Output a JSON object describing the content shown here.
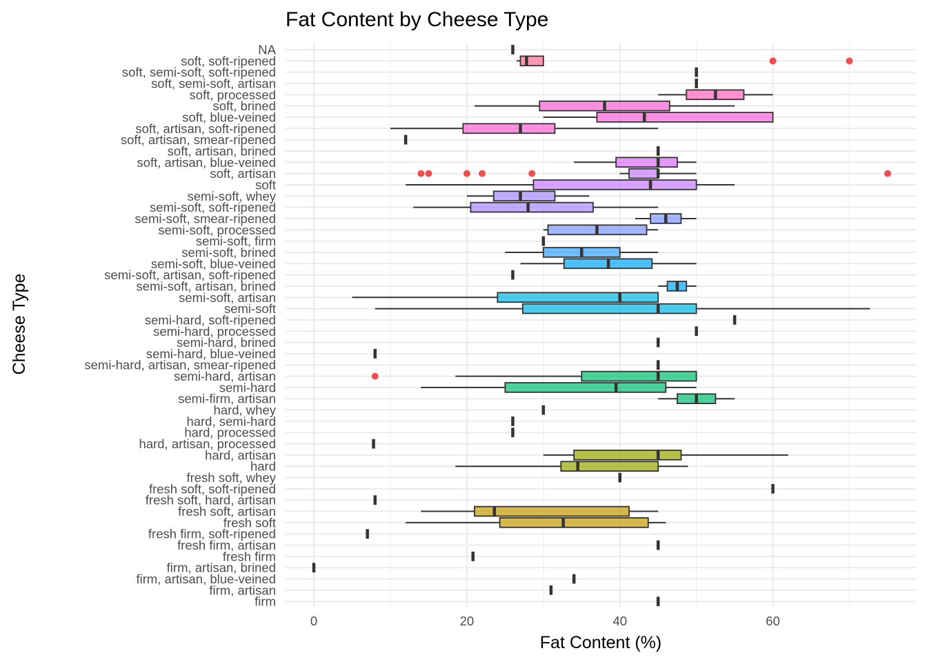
{
  "chart_data": {
    "type": "boxplot",
    "orientation": "horizontal",
    "title": "Fat Content by Cheese Type",
    "xlabel": "Fat Content (%)",
    "ylabel": "Cheese Type",
    "xlim": [
      -3.7,
      78.7
    ],
    "xticks": [
      0,
      20,
      40,
      60
    ],
    "grid": true,
    "legend": "none",
    "outlier_color": "#f03c3c",
    "categories": [
      "firm",
      "firm, artisan",
      "firm, artisan, blue-veined",
      "firm, artisan, brined",
      "fresh firm",
      "fresh firm, artisan",
      "fresh firm, soft-ripened",
      "fresh soft",
      "fresh soft, artisan",
      "fresh soft, hard, artisan",
      "fresh soft, soft-ripened",
      "fresh soft, whey",
      "hard",
      "hard, artisan",
      "hard, artisan, processed",
      "hard, processed",
      "hard, semi-hard",
      "hard, whey",
      "semi-firm, artisan",
      "semi-hard",
      "semi-hard, artisan",
      "semi-hard, artisan, smear-ripened",
      "semi-hard, blue-veined",
      "semi-hard, brined",
      "semi-hard, processed",
      "semi-hard, soft-ripened",
      "semi-soft",
      "semi-soft, artisan",
      "semi-soft, artisan, brined",
      "semi-soft, artisan, soft-ripened",
      "semi-soft, blue-veined",
      "semi-soft, brined",
      "semi-soft, firm",
      "semi-soft, processed",
      "semi-soft, smear-ripened",
      "semi-soft, soft-ripened",
      "semi-soft, whey",
      "soft",
      "soft, artisan",
      "soft, artisan, blue-veined",
      "soft, artisan, brined",
      "soft, artisan, smear-ripened",
      "soft, artisan, soft-ripened",
      "soft, blue-veined",
      "soft, brined",
      "soft, processed",
      "soft, semi-soft, artisan",
      "soft, semi-soft, soft-ripened",
      "soft, soft-ripened",
      "NA"
    ],
    "boxes": [
      {
        "category": "firm",
        "min": 45,
        "q1": 45,
        "median": 45,
        "q3": 45,
        "max": 45,
        "outliers": [],
        "color": "#c49a00"
      },
      {
        "category": "firm, artisan",
        "min": 31,
        "q1": 31,
        "median": 31,
        "q3": 31,
        "max": 31,
        "outliers": [],
        "color": "#c49a00"
      },
      {
        "category": "firm, artisan, blue-veined",
        "min": 34,
        "q1": 34,
        "median": 34,
        "q3": 34,
        "max": 34,
        "outliers": [],
        "color": "#c49a00"
      },
      {
        "category": "firm, artisan, brined",
        "min": 0,
        "q1": 0,
        "median": 0,
        "q3": 0,
        "max": 0,
        "outliers": [],
        "color": "#c49a00"
      },
      {
        "category": "fresh firm",
        "min": 20.8,
        "q1": 20.8,
        "median": 20.8,
        "q3": 20.8,
        "max": 20.8,
        "outliers": [],
        "color": "#c49a00"
      },
      {
        "category": "fresh firm, artisan",
        "min": 45,
        "q1": 45,
        "median": 45,
        "q3": 45,
        "max": 45,
        "outliers": [],
        "color": "#c49a00"
      },
      {
        "category": "fresh firm, soft-ripened",
        "min": 7,
        "q1": 7,
        "median": 7,
        "q3": 7,
        "max": 7,
        "outliers": [],
        "color": "#c49a00"
      },
      {
        "category": "fresh soft",
        "min": 12,
        "q1": 24.3,
        "median": 32.6,
        "q3": 43.7,
        "max": 46,
        "outliers": [],
        "color": "#c49a00"
      },
      {
        "category": "fresh soft, artisan",
        "min": 14,
        "q1": 21,
        "median": 23.6,
        "q3": 41.2,
        "max": 45,
        "outliers": [],
        "color": "#c49a00"
      },
      {
        "category": "fresh soft, hard, artisan",
        "min": 8,
        "q1": 8,
        "median": 8,
        "q3": 8,
        "max": 8,
        "outliers": [],
        "color": "#c49a00"
      },
      {
        "category": "fresh soft, soft-ripened",
        "min": 60,
        "q1": 60,
        "median": 60,
        "q3": 60,
        "max": 60,
        "outliers": [],
        "color": "#c49a00"
      },
      {
        "category": "fresh soft, whey",
        "min": 40,
        "q1": 40,
        "median": 40,
        "q3": 40,
        "max": 40,
        "outliers": [],
        "color": "#99a800"
      },
      {
        "category": "hard",
        "min": 18.5,
        "q1": 32.3,
        "median": 34.5,
        "q3": 45,
        "max": 48.9,
        "outliers": [],
        "color": "#99a800"
      },
      {
        "category": "hard, artisan",
        "min": 30,
        "q1": 34,
        "median": 45,
        "q3": 48,
        "max": 62,
        "outliers": [],
        "color": "#99a800"
      },
      {
        "category": "hard, artisan, processed",
        "min": 7.8,
        "q1": 7.8,
        "median": 7.8,
        "q3": 7.8,
        "max": 7.8,
        "outliers": [],
        "color": "#99a800"
      },
      {
        "category": "hard, processed",
        "min": 26,
        "q1": 26,
        "median": 26,
        "q3": 26,
        "max": 26,
        "outliers": [],
        "color": "#5bb300"
      },
      {
        "category": "hard, semi-hard",
        "min": 26,
        "q1": 26,
        "median": 26,
        "q3": 26,
        "max": 26,
        "outliers": [],
        "color": "#5bb300"
      },
      {
        "category": "hard, whey",
        "min": 30,
        "q1": 30,
        "median": 30,
        "q3": 30,
        "max": 30,
        "outliers": [],
        "color": "#00ba38"
      },
      {
        "category": "semi-firm, artisan",
        "min": 45,
        "q1": 47.5,
        "median": 50,
        "q3": 52.5,
        "max": 55,
        "outliers": [],
        "color": "#00bf74"
      },
      {
        "category": "semi-hard",
        "min": 14,
        "q1": 25,
        "median": 39.5,
        "q3": 46,
        "max": 50,
        "outliers": [],
        "color": "#00bf74"
      },
      {
        "category": "semi-hard, artisan",
        "min": 18.5,
        "q1": 35,
        "median": 45,
        "q3": 50,
        "max": 50,
        "outliers": [
          8
        ],
        "color": "#00bf74"
      },
      {
        "category": "semi-hard, artisan, smear-ripened",
        "min": 45,
        "q1": 45,
        "median": 45,
        "q3": 45,
        "max": 45,
        "outliers": [],
        "color": "#00c19f"
      },
      {
        "category": "semi-hard, blue-veined",
        "min": 8,
        "q1": 8,
        "median": 8,
        "q3": 8,
        "max": 8,
        "outliers": [],
        "color": "#00c19f"
      },
      {
        "category": "semi-hard, brined",
        "min": 45,
        "q1": 45,
        "median": 45,
        "q3": 45,
        "max": 45,
        "outliers": [],
        "color": "#00bfc4"
      },
      {
        "category": "semi-hard, processed",
        "min": 50,
        "q1": 50,
        "median": 50,
        "q3": 50,
        "max": 50,
        "outliers": [],
        "color": "#00bfc4"
      },
      {
        "category": "semi-hard, soft-ripened",
        "min": 55,
        "q1": 55,
        "median": 55,
        "q3": 55,
        "max": 55,
        "outliers": [],
        "color": "#00b8e7"
      },
      {
        "category": "semi-soft",
        "min": 8,
        "q1": 27.3,
        "median": 45,
        "q3": 50,
        "max": 72.7,
        "outliers": [],
        "color": "#00b8e7"
      },
      {
        "category": "semi-soft, artisan",
        "min": 5,
        "q1": 24,
        "median": 40,
        "q3": 45,
        "max": 45,
        "outliers": [],
        "color": "#00b8e7"
      },
      {
        "category": "semi-soft, artisan, brined",
        "min": 45,
        "q1": 46.2,
        "median": 47.5,
        "q3": 48.7,
        "max": 50,
        "outliers": [],
        "color": "#00a9ff"
      },
      {
        "category": "semi-soft, artisan, soft-ripened",
        "min": 26,
        "q1": 26,
        "median": 26,
        "q3": 26,
        "max": 26,
        "outliers": [],
        "color": "#00a9ff"
      },
      {
        "category": "semi-soft, blue-veined",
        "min": 27,
        "q1": 32.7,
        "median": 38.5,
        "q3": 44.2,
        "max": 50,
        "outliers": [],
        "color": "#00a9ff"
      },
      {
        "category": "semi-soft, brined",
        "min": 25,
        "q1": 30,
        "median": 35,
        "q3": 40,
        "max": 45,
        "outliers": [],
        "color": "#35a2ff"
      },
      {
        "category": "semi-soft, firm",
        "min": 30,
        "q1": 30,
        "median": 30,
        "q3": 30,
        "max": 30,
        "outliers": [],
        "color": "#35a2ff"
      },
      {
        "category": "semi-soft, processed",
        "min": 30,
        "q1": 30.6,
        "median": 37,
        "q3": 43.5,
        "max": 45,
        "outliers": [],
        "color": "#7f96ff"
      },
      {
        "category": "semi-soft, smear-ripened",
        "min": 42,
        "q1": 44,
        "median": 46,
        "q3": 48,
        "max": 50,
        "outliers": [],
        "color": "#7f96ff"
      },
      {
        "category": "semi-soft, soft-ripened",
        "min": 13,
        "q1": 20.5,
        "median": 28,
        "q3": 36.5,
        "max": 45,
        "outliers": [],
        "color": "#a58aff"
      },
      {
        "category": "semi-soft, whey",
        "min": 20,
        "q1": 23.5,
        "median": 27,
        "q3": 31.5,
        "max": 36,
        "outliers": [],
        "color": "#a58aff"
      },
      {
        "category": "soft",
        "min": 12,
        "q1": 28.7,
        "median": 44,
        "q3": 50,
        "max": 55,
        "outliers": [],
        "color": "#c77cff"
      },
      {
        "category": "soft, artisan",
        "min": 40,
        "q1": 41.2,
        "median": 45,
        "q3": 45,
        "max": 50,
        "outliers": [
          14,
          15,
          20,
          22,
          28.5,
          75
        ],
        "color": "#c77cff"
      },
      {
        "category": "soft, artisan, blue-veined",
        "min": 34,
        "q1": 39.5,
        "median": 45,
        "q3": 47.5,
        "max": 50,
        "outliers": [],
        "color": "#dc71fa"
      },
      {
        "category": "soft, artisan, brined",
        "min": 45,
        "q1": 45,
        "median": 45,
        "q3": 45,
        "max": 45,
        "outliers": [],
        "color": "#dc71fa"
      },
      {
        "category": "soft, artisan, smear-ripened",
        "min": 12,
        "q1": 12,
        "median": 12,
        "q3": 12,
        "max": 12,
        "outliers": [],
        "color": "#ed68ed"
      },
      {
        "category": "soft, artisan, soft-ripened",
        "min": 10,
        "q1": 19.5,
        "median": 27,
        "q3": 31.5,
        "max": 45,
        "outliers": [],
        "color": "#fb61d7"
      },
      {
        "category": "soft, blue-veined",
        "min": 30,
        "q1": 37,
        "median": 43.2,
        "q3": 60,
        "max": 60,
        "outliers": [],
        "color": "#fb61d7"
      },
      {
        "category": "soft, brined",
        "min": 21,
        "q1": 29.5,
        "median": 38,
        "q3": 46.5,
        "max": 55,
        "outliers": [],
        "color": "#fb61d7"
      },
      {
        "category": "soft, processed",
        "min": 45,
        "q1": 48.7,
        "median": 52.5,
        "q3": 56.2,
        "max": 60,
        "outliers": [],
        "color": "#ff62bc"
      },
      {
        "category": "soft, semi-soft, artisan",
        "min": 50,
        "q1": 50,
        "median": 50,
        "q3": 50,
        "max": 50,
        "outliers": [],
        "color": "#ff62bc"
      },
      {
        "category": "soft, semi-soft, soft-ripened",
        "min": 50,
        "q1": 50,
        "median": 50,
        "q3": 50,
        "max": 50,
        "outliers": [],
        "color": "#ff6c91"
      },
      {
        "category": "soft, soft-ripened",
        "min": 26.5,
        "q1": 27,
        "median": 27.8,
        "q3": 30,
        "max": 30,
        "outliers": [
          60,
          70
        ],
        "color": "#ff6c91"
      },
      {
        "category": "NA",
        "min": 26,
        "q1": 26,
        "median": 26,
        "q3": 26,
        "max": 26,
        "outliers": [],
        "color": "#f8766d"
      }
    ]
  }
}
